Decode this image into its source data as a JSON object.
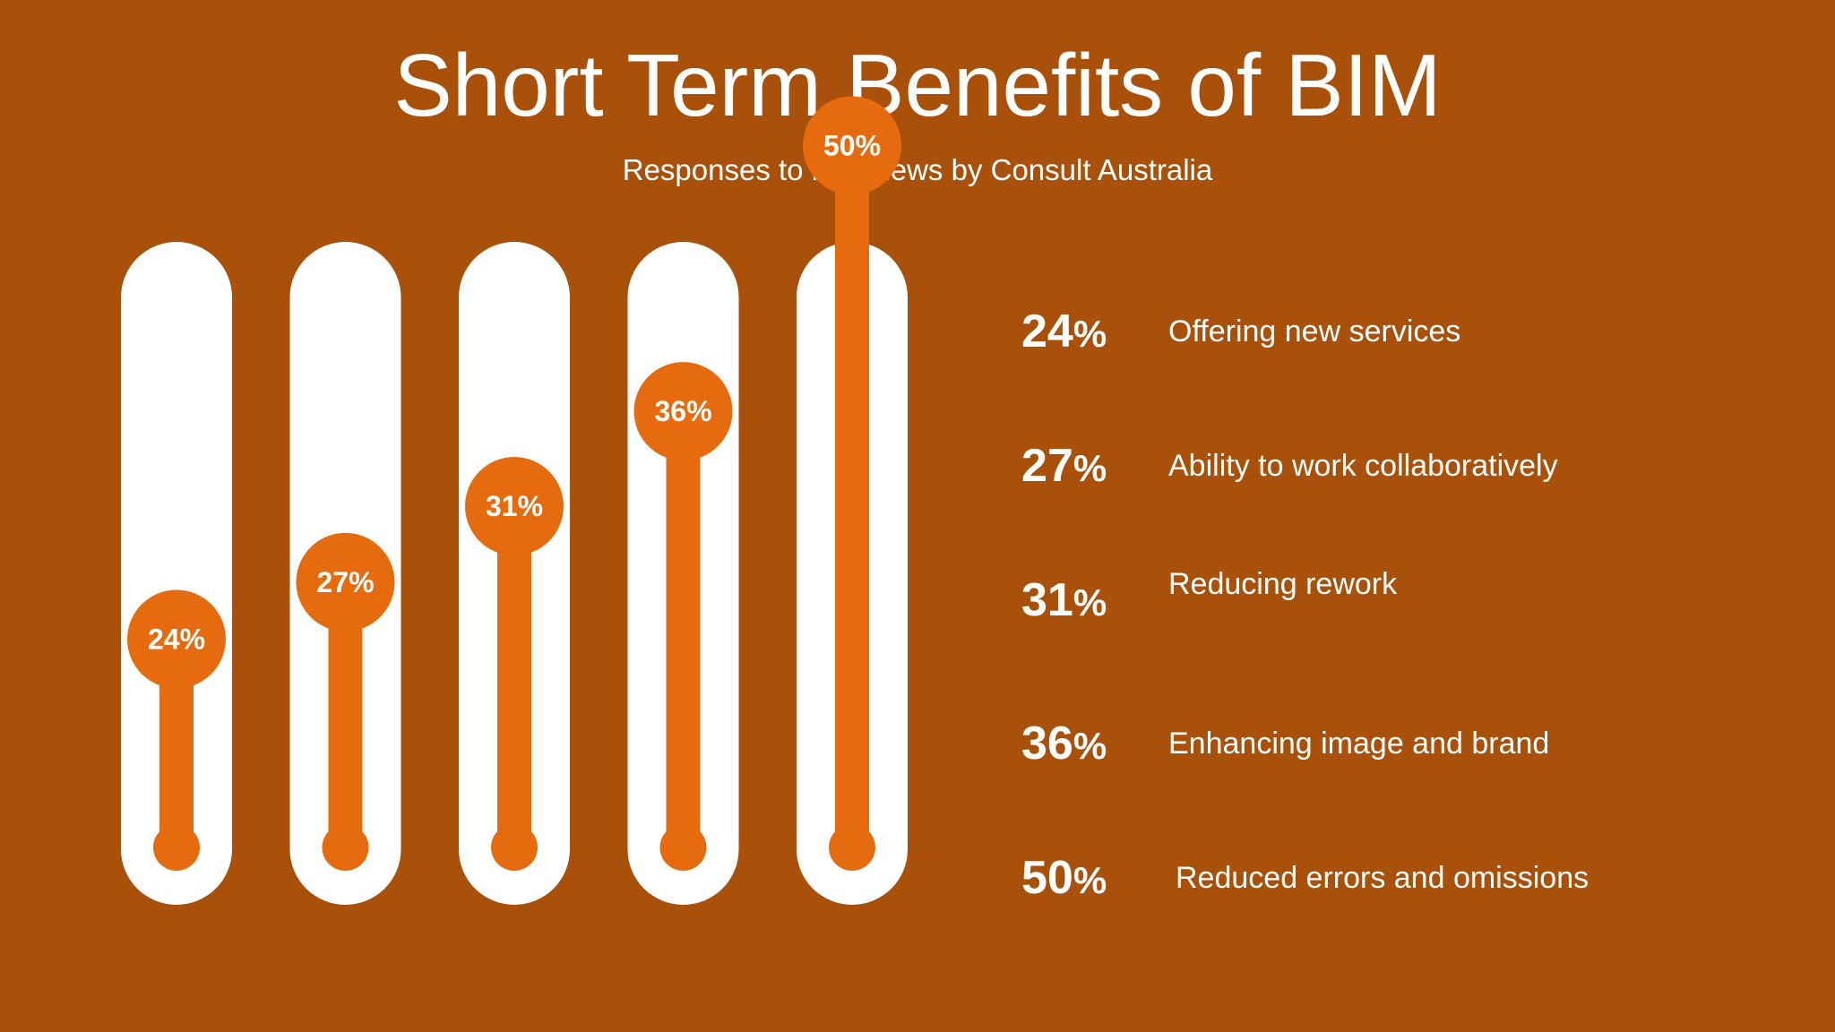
{
  "title": "Short Term Benefits of BIM",
  "subtitle": "Responses to interviews by Consult Australia",
  "colors": {
    "background": "#A9510A",
    "tube": "#FFFFFF",
    "accent": "#E56B0E"
  },
  "chart_data": {
    "type": "bar",
    "style": "thermometer",
    "categories": [
      "Offering new services",
      "Ability to work collaboratively",
      "Reducing rework",
      "Enhancing image and brand",
      "Reduced errors and omissions"
    ],
    "values": [
      24,
      27,
      31,
      36,
      50
    ],
    "value_labels": [
      "24%",
      "27%",
      "31%",
      "36%",
      "50%"
    ],
    "unit": "%"
  },
  "legend": [
    {
      "value": "24",
      "sign": "%",
      "label": "Offering new services"
    },
    {
      "value": "27",
      "sign": "%",
      "label": "Ability to work collaboratively"
    },
    {
      "value": "31",
      "sign": "%",
      "label": "Reducing rework"
    },
    {
      "value": "36",
      "sign": "%",
      "label": "Enhancing image and brand"
    },
    {
      "value": "50",
      "sign": "%",
      "label": "Reduced errors and omissions"
    }
  ]
}
